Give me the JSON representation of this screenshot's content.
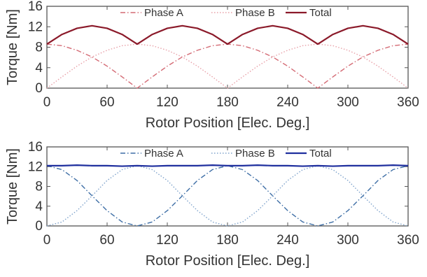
{
  "chart_data": [
    {
      "type": "line",
      "title": "",
      "xlabel": "Rotor Position [Elec. Deg.]",
      "ylabel": "Torque [Nm]",
      "xlim": [
        0,
        360
      ],
      "ylim": [
        0,
        16
      ],
      "xticks": [
        0,
        60,
        120,
        180,
        240,
        300,
        360
      ],
      "yticks": [
        0,
        4,
        8,
        12,
        16
      ],
      "legend_position": "top-center",
      "grid": false,
      "series": [
        {
          "name": "Phase A",
          "style": "dash-dot",
          "color": "#d46a74",
          "x": [
            0,
            15,
            30,
            45,
            60,
            75,
            90,
            105,
            120,
            135,
            150,
            165,
            180,
            195,
            210,
            225,
            240,
            255,
            270,
            285,
            300,
            315,
            330,
            345,
            360
          ],
          "y": [
            8.6,
            8.3,
            7.4,
            6.1,
            4.3,
            2.2,
            0,
            2.2,
            4.3,
            6.1,
            7.4,
            8.3,
            8.6,
            8.3,
            7.4,
            6.1,
            4.3,
            2.2,
            0,
            2.2,
            4.3,
            6.1,
            7.4,
            8.3,
            8.6
          ]
        },
        {
          "name": "Phase B",
          "style": "dotted",
          "color": "#e8a0a8",
          "x": [
            0,
            15,
            30,
            45,
            60,
            75,
            90,
            105,
            120,
            135,
            150,
            165,
            180,
            195,
            210,
            225,
            240,
            255,
            270,
            285,
            300,
            315,
            330,
            345,
            360
          ],
          "y": [
            0,
            2.2,
            4.3,
            6.1,
            7.4,
            8.3,
            8.6,
            8.3,
            7.4,
            6.1,
            4.3,
            2.2,
            0,
            2.2,
            4.3,
            6.1,
            7.4,
            8.3,
            8.6,
            8.3,
            7.4,
            6.1,
            4.3,
            2.2,
            0
          ]
        },
        {
          "name": "Total",
          "style": "solid",
          "color": "#8b1a2a",
          "x": [
            0,
            15,
            30,
            45,
            60,
            75,
            90,
            105,
            120,
            135,
            150,
            165,
            180,
            195,
            210,
            225,
            240,
            255,
            270,
            285,
            300,
            315,
            330,
            345,
            360
          ],
          "y": [
            8.6,
            10.5,
            11.7,
            12.2,
            11.7,
            10.5,
            8.6,
            10.5,
            11.7,
            12.2,
            11.7,
            10.5,
            8.6,
            10.5,
            11.7,
            12.2,
            11.7,
            10.5,
            8.6,
            10.5,
            11.7,
            12.2,
            11.7,
            10.5,
            8.6
          ]
        }
      ]
    },
    {
      "type": "line",
      "title": "",
      "xlabel": "Rotor Position [Elec. Deg.]",
      "ylabel": "Torque [Nm]",
      "xlim": [
        0,
        360
      ],
      "ylim": [
        0,
        16
      ],
      "xticks": [
        0,
        60,
        120,
        180,
        240,
        300,
        360
      ],
      "yticks": [
        0,
        4,
        8,
        12,
        16
      ],
      "legend_position": "top-center",
      "grid": false,
      "series": [
        {
          "name": "Phase A",
          "style": "dash-dot",
          "color": "#3f6fa6",
          "x": [
            0,
            15,
            30,
            45,
            60,
            75,
            90,
            105,
            120,
            135,
            150,
            165,
            180,
            195,
            210,
            225,
            240,
            255,
            270,
            285,
            300,
            315,
            330,
            345,
            360
          ],
          "y": [
            12.2,
            11.4,
            9.2,
            6.1,
            3.1,
            0.8,
            0,
            0.8,
            3.1,
            6.1,
            9.2,
            11.4,
            12.2,
            11.4,
            9.2,
            6.1,
            3.1,
            0.8,
            0,
            0.8,
            3.1,
            6.1,
            9.2,
            11.4,
            12.2
          ]
        },
        {
          "name": "Phase B",
          "style": "dotted",
          "color": "#7fa3cc",
          "x": [
            0,
            15,
            30,
            45,
            60,
            75,
            90,
            105,
            120,
            135,
            150,
            165,
            180,
            195,
            210,
            225,
            240,
            255,
            270,
            285,
            300,
            315,
            330,
            345,
            360
          ],
          "y": [
            0,
            0.8,
            3.1,
            6.1,
            9.2,
            11.4,
            12.2,
            11.4,
            9.2,
            6.1,
            3.1,
            0.8,
            0,
            0.8,
            3.1,
            6.1,
            9.2,
            11.4,
            12.2,
            11.4,
            9.2,
            6.1,
            3.1,
            0.8,
            0
          ]
        },
        {
          "name": "Total",
          "style": "solid",
          "color": "#1f2f9e",
          "x": [
            0,
            15,
            30,
            45,
            60,
            75,
            90,
            105,
            120,
            135,
            150,
            165,
            180,
            195,
            210,
            225,
            240,
            255,
            270,
            285,
            300,
            315,
            330,
            345,
            360
          ],
          "y": [
            12.2,
            12.2,
            12.3,
            12.2,
            12.2,
            12.1,
            12.2,
            12.1,
            12.2,
            12.2,
            12.2,
            12.3,
            12.2,
            12.2,
            12.3,
            12.2,
            12.2,
            12.1,
            12.2,
            12.1,
            12.2,
            12.2,
            12.2,
            12.3,
            12.2
          ]
        }
      ]
    }
  ]
}
